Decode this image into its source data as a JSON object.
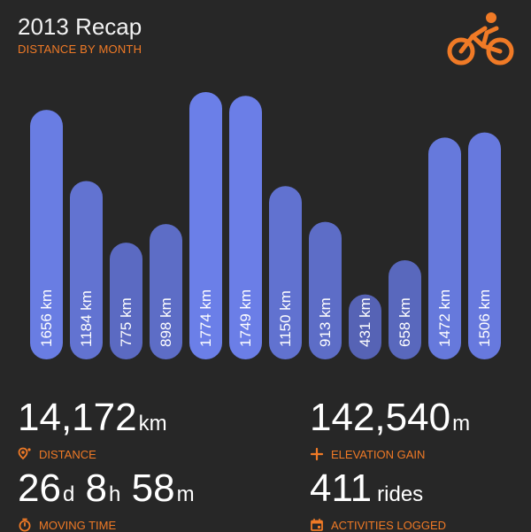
{
  "header": {
    "title": "2013 Recap",
    "subtitle": "DISTANCE BY MONTH"
  },
  "logo": {
    "icon": "cyclist-icon",
    "color": "#f07a26"
  },
  "chart_data": {
    "type": "bar",
    "orientation": "vertical",
    "title": "2013 Recap",
    "subtitle": "DISTANCE BY MONTH",
    "unit": "km",
    "values": [
      1656,
      1184,
      775,
      898,
      1774,
      1749,
      1150,
      913,
      431,
      658,
      1472,
      1506
    ],
    "value_labels": [
      "1656 km",
      "1184 km",
      "775 km",
      "898 km",
      "1774 km",
      "1749 km",
      "1150 km",
      "913 km",
      "431 km",
      "658 km",
      "1472 km",
      "1506 km"
    ],
    "ylim": [
      0,
      1774
    ],
    "grid": false,
    "legend": "none",
    "colors": {
      "high": "#6b7fe8",
      "low": "#4f5aa4"
    }
  },
  "stats": {
    "distance": {
      "value": "14,172",
      "unit": "km",
      "label": "DISTANCE",
      "icon": "location-pin-icon"
    },
    "elevation": {
      "value": "142,540",
      "unit": "m",
      "label": "ELEVATION GAIN",
      "icon": "plus-icon"
    },
    "moving_time": {
      "d": "26",
      "d_unit": "d",
      "h": "8",
      "h_unit": "h",
      "m": "58",
      "m_unit": "m",
      "label": "MOVING TIME",
      "icon": "stopwatch-icon"
    },
    "activities": {
      "value": "411",
      "unit": "rides",
      "label": "ACTIVITIES LOGGED",
      "icon": "calendar-icon"
    }
  }
}
